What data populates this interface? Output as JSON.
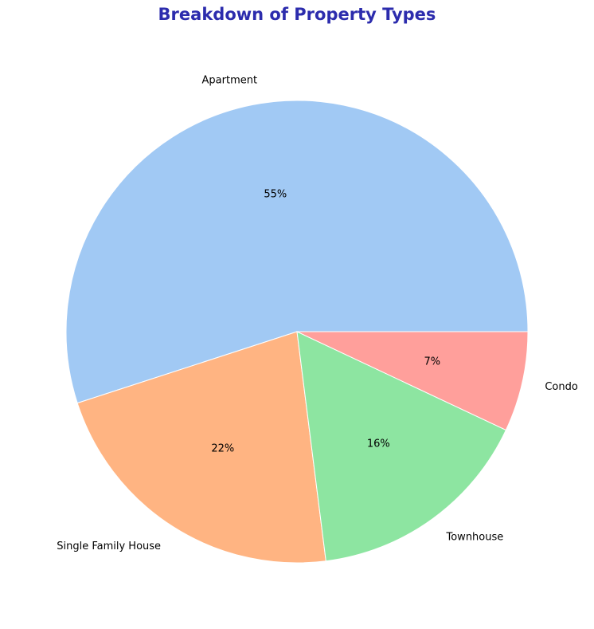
{
  "colors": {
    "title": "#2c2cad",
    "edge": "#ffffff"
  },
  "chart_data": {
    "type": "pie",
    "title": "Breakdown of Property Types",
    "start_angle": 0,
    "direction": "counterclockwise",
    "slices": [
      {
        "label": "Apartment",
        "value": 55,
        "pct_label": "55%",
        "color": "#a1c9f4"
      },
      {
        "label": "Single Family House",
        "value": 22,
        "pct_label": "22%",
        "color": "#ffb482"
      },
      {
        "label": "Townhouse",
        "value": 16,
        "pct_label": "16%",
        "color": "#8de5a1"
      },
      {
        "label": "Condo",
        "value": 7,
        "pct_label": "7%",
        "color": "#ff9f9b"
      }
    ]
  }
}
